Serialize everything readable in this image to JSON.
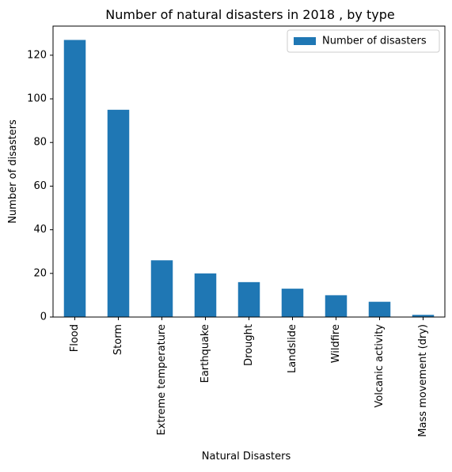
{
  "chart_data": {
    "type": "bar",
    "title": "Number of natural disasters in 2018 , by type",
    "xlabel": "Natural Disasters",
    "ylabel": "Number of disasters",
    "categories": [
      "Flood",
      "Storm",
      "Extreme temperature",
      "Earthquake",
      "Drought",
      "Landslide",
      "Wildfire",
      "Volcanic activity",
      "Mass movement (dry)"
    ],
    "series": [
      {
        "name": "Number of disasters",
        "values": [
          127,
          95,
          26,
          20,
          16,
          13,
          10,
          7,
          1
        ]
      }
    ],
    "ylim": [
      0,
      133.35
    ],
    "yticks": [
      0,
      20,
      40,
      60,
      80,
      100,
      120
    ],
    "grid": false,
    "legend": "top-right",
    "colors": {
      "bar": "#1f77b4"
    }
  }
}
